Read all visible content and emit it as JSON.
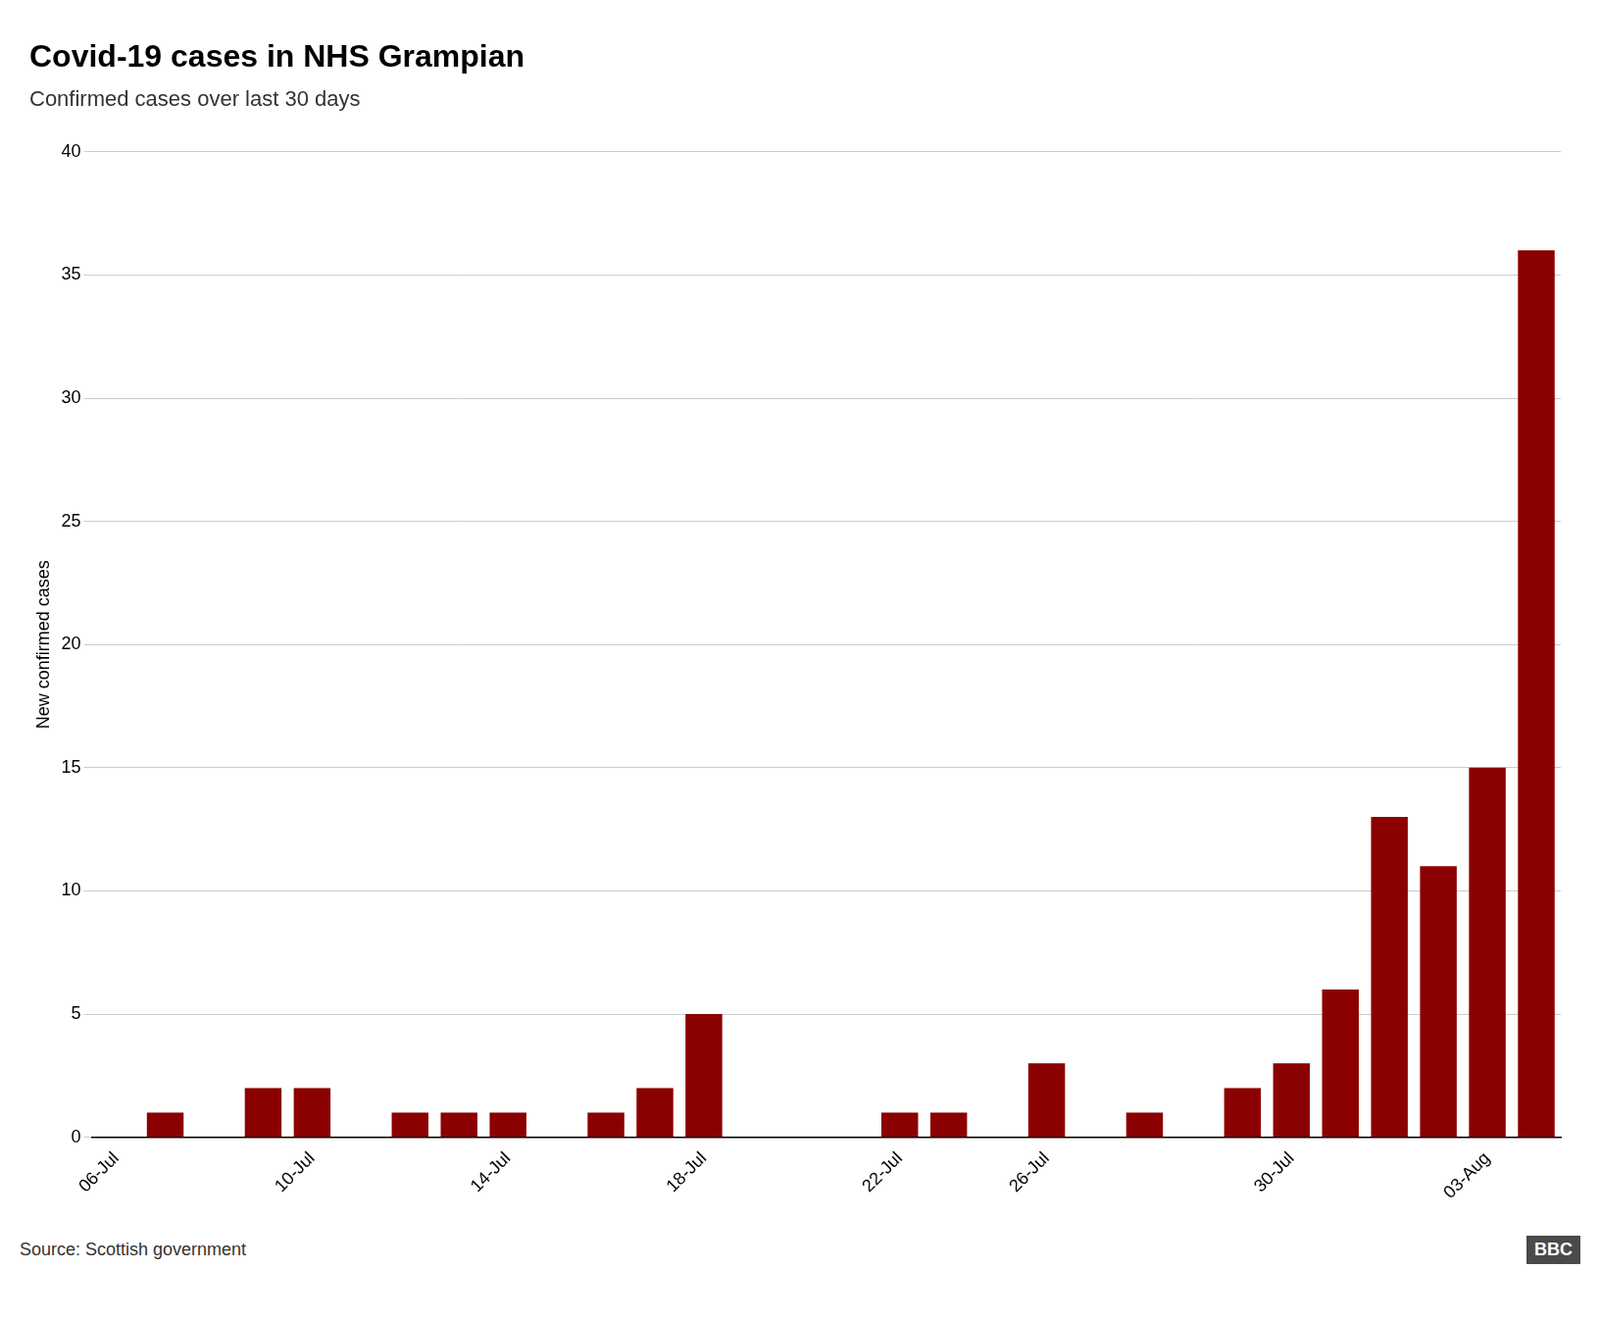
{
  "chart_data": {
    "type": "bar",
    "title": "Covid-19 cases in NHS Grampian",
    "subtitle": "Confirmed cases over last 30 days",
    "ylabel": "New confirmed cases",
    "source": "Source: Scottish government",
    "logo": "BBC",
    "categories": [
      "06-Jul",
      null,
      null,
      null,
      "10-Jul",
      null,
      null,
      null,
      "14-Jul",
      null,
      null,
      null,
      "18-Jul",
      null,
      null,
      null,
      "22-Jul",
      null,
      null,
      "26-Jul",
      null,
      null,
      null,
      null,
      "30-Jul",
      null,
      null,
      null,
      "03-Aug",
      null
    ],
    "values": [
      0,
      1,
      0,
      2,
      2,
      0,
      1,
      1,
      1,
      0,
      1,
      2,
      5,
      0,
      0,
      0,
      1,
      1,
      0,
      3,
      0,
      1,
      0,
      2,
      3,
      6,
      13,
      11,
      15,
      36
    ],
    "color": "#8B0000",
    "ylim": [
      0,
      40
    ],
    "yticks": [
      0,
      5,
      10,
      15,
      20,
      25,
      30,
      35,
      40
    ],
    "grid": true
  }
}
